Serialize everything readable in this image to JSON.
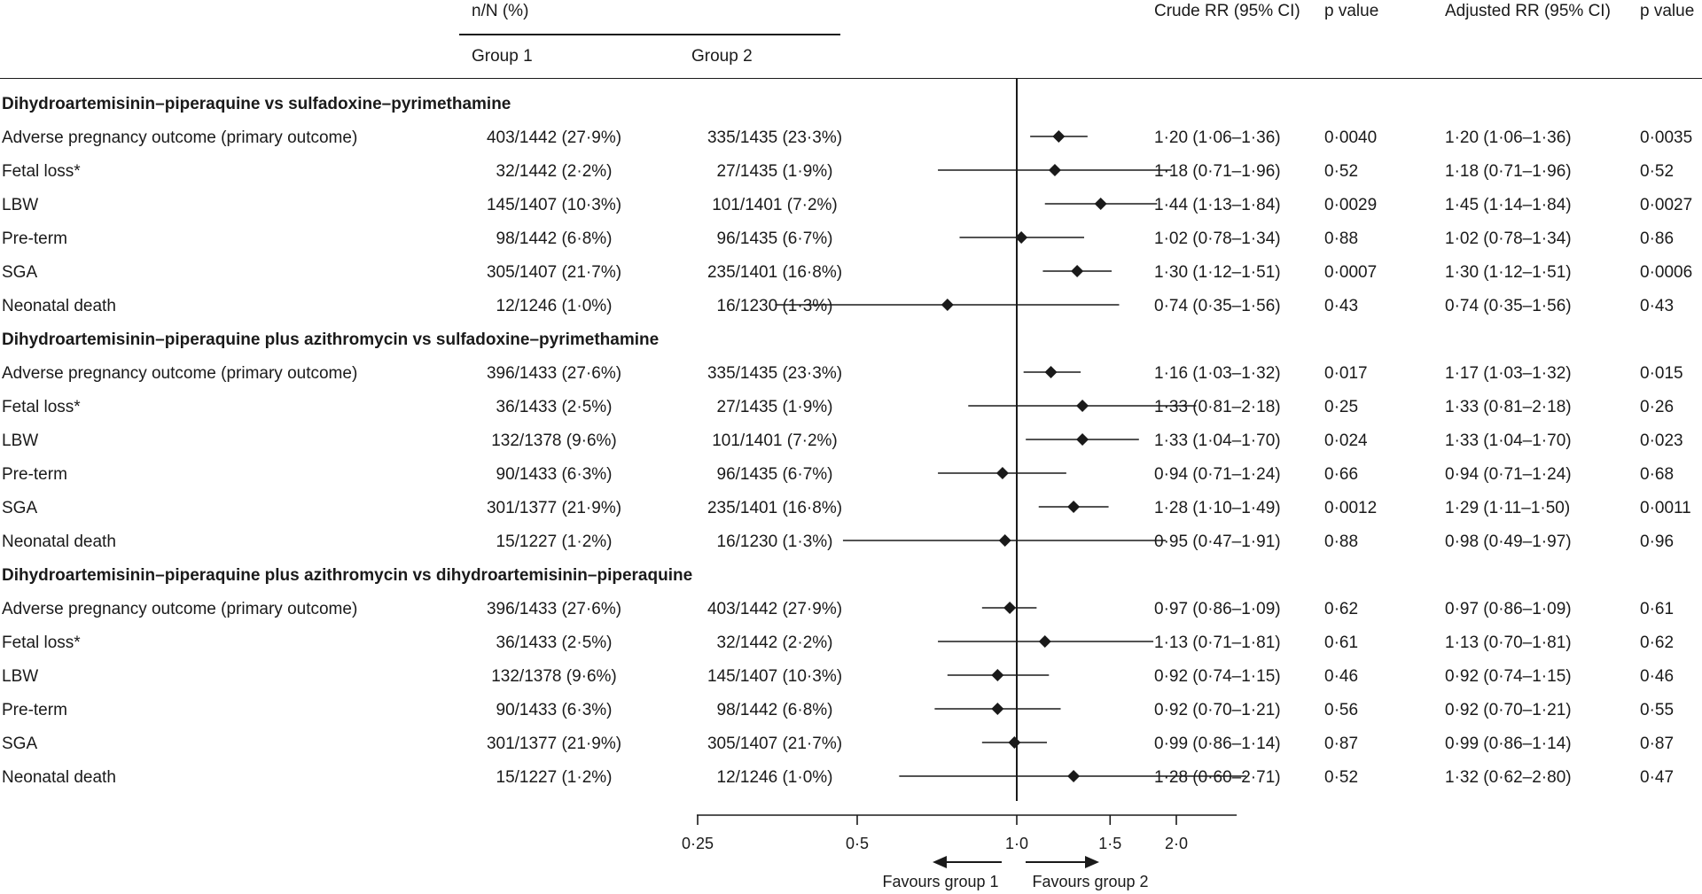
{
  "header": {
    "nN": "n/N (%)",
    "group1": "Group 1",
    "group2": "Group 2",
    "crude": "Crude RR (95% CI)",
    "pvalue1": "p value",
    "adjusted": "Adjusted RR (95% CI)",
    "pvalue2": "p value"
  },
  "chart_data": {
    "type": "forest",
    "scale": "log",
    "xlim": [
      0.25,
      2.6
    ],
    "reference": 1.0,
    "ticks": [
      {
        "v": 0.25,
        "label": "0·25"
      },
      {
        "v": 0.5,
        "label": "0·5"
      },
      {
        "v": 1.0,
        "label": "1·0"
      },
      {
        "v": 1.5,
        "label": "1·5"
      },
      {
        "v": 2.0,
        "label": "2·0"
      }
    ],
    "favours_left": "Favours group 1",
    "favours_right": "Favours group 2",
    "sections": [
      {
        "title": "Dihydroartemisinin–piperaquine vs sulfadoxine–pyrimethamine",
        "rows": [
          {
            "label": "Adverse pregnancy outcome (primary outcome)",
            "g1": "403/1442 (27·9%)",
            "g2": "335/1435 (23·3%)",
            "crude": "1·20 (1·06–1·36)",
            "p1": "0·0040",
            "adj": "1·20 (1·06–1·36)",
            "p2": "0·0035",
            "rr": 1.2,
            "lo": 1.06,
            "hi": 1.36
          },
          {
            "label": "Fetal loss*",
            "g1": "32/1442 (2·2%)",
            "g2": "27/1435 (1·9%)",
            "crude": "1·18 (0·71–1·96)",
            "p1": "0·52",
            "adj": "1·18 (0·71–1·96)",
            "p2": "0·52",
            "rr": 1.18,
            "lo": 0.71,
            "hi": 1.96
          },
          {
            "label": "LBW",
            "g1": "145/1407 (10·3%)",
            "g2": "101/1401 (7·2%)",
            "crude": "1·44 (1·13–1·84)",
            "p1": "0·0029",
            "adj": "1·45 (1·14–1·84)",
            "p2": "0·0027",
            "rr": 1.44,
            "lo": 1.13,
            "hi": 1.84
          },
          {
            "label": "Pre-term",
            "g1": "98/1442 (6·8%)",
            "g2": "96/1435 (6·7%)",
            "crude": "1·02 (0·78–1·34)",
            "p1": "0·88",
            "adj": "1·02 (0·78–1·34)",
            "p2": "0·86",
            "rr": 1.02,
            "lo": 0.78,
            "hi": 1.34
          },
          {
            "label": "SGA",
            "g1": "305/1407 (21·7%)",
            "g2": "235/1401 (16·8%)",
            "crude": "1·30 (1·12–1·51)",
            "p1": "0·0007",
            "adj": "1·30 (1·12–1·51)",
            "p2": "0·0006",
            "rr": 1.3,
            "lo": 1.12,
            "hi": 1.51
          },
          {
            "label": "Neonatal death",
            "g1": "12/1246 (1·0%)",
            "g2": "16/1230 (1·3%)",
            "crude": "0·74 (0·35–1·56)",
            "p1": "0·43",
            "adj": "0·74 (0·35–1·56)",
            "p2": "0·43",
            "rr": 0.74,
            "lo": 0.35,
            "hi": 1.56
          }
        ]
      },
      {
        "title": "Dihydroartemisinin–piperaquine plus azithromycin vs sulfadoxine–pyrimethamine",
        "rows": [
          {
            "label": "Adverse pregnancy outcome (primary outcome)",
            "g1": "396/1433 (27·6%)",
            "g2": "335/1435 (23·3%)",
            "crude": "1·16 (1·03–1·32)",
            "p1": "0·017",
            "adj": "1·17 (1·03–1·32)",
            "p2": "0·015",
            "rr": 1.16,
            "lo": 1.03,
            "hi": 1.32
          },
          {
            "label": "Fetal loss*",
            "g1": "36/1433 (2·5%)",
            "g2": "27/1435 (1·9%)",
            "crude": "1·33 (0·81–2·18)",
            "p1": "0·25",
            "adj": "1·33 (0·81–2·18)",
            "p2": "0·26",
            "rr": 1.33,
            "lo": 0.81,
            "hi": 2.18
          },
          {
            "label": "LBW",
            "g1": "132/1378 (9·6%)",
            "g2": "101/1401 (7·2%)",
            "crude": "1·33 (1·04–1·70)",
            "p1": "0·024",
            "adj": "1·33 (1·04–1·70)",
            "p2": "0·023",
            "rr": 1.33,
            "lo": 1.04,
            "hi": 1.7
          },
          {
            "label": "Pre-term",
            "g1": "90/1433 (6·3%)",
            "g2": "96/1435 (6·7%)",
            "crude": "0·94 (0·71–1·24)",
            "p1": "0·66",
            "adj": "0·94 (0·71–1·24)",
            "p2": "0·68",
            "rr": 0.94,
            "lo": 0.71,
            "hi": 1.24
          },
          {
            "label": "SGA",
            "g1": "301/1377 (21·9%)",
            "g2": "235/1401 (16·8%)",
            "crude": "1·28 (1·10–1·49)",
            "p1": "0·0012",
            "adj": "1·29 (1·11–1·50)",
            "p2": "0·0011",
            "rr": 1.28,
            "lo": 1.1,
            "hi": 1.49
          },
          {
            "label": "Neonatal death",
            "g1": "15/1227 (1·2%)",
            "g2": "16/1230 (1·3%)",
            "crude": "0·95 (0·47–1·91)",
            "p1": "0·88",
            "adj": "0·98 (0·49–1·97)",
            "p2": "0·96",
            "rr": 0.95,
            "lo": 0.47,
            "hi": 1.91
          }
        ]
      },
      {
        "title": "Dihydroartemisinin–piperaquine plus azithromycin vs dihydroartemisinin–piperaquine",
        "rows": [
          {
            "label": "Adverse pregnancy outcome (primary outcome)",
            "g1": "396/1433 (27·6%)",
            "g2": "403/1442 (27·9%)",
            "crude": "0·97 (0·86–1·09)",
            "p1": "0·62",
            "adj": "0·97 (0·86–1·09)",
            "p2": "0·61",
            "rr": 0.97,
            "lo": 0.86,
            "hi": 1.09
          },
          {
            "label": "Fetal loss*",
            "g1": "36/1433 (2·5%)",
            "g2": "32/1442 (2·2%)",
            "crude": "1·13 (0·71–1·81)",
            "p1": "0·61",
            "adj": "1·13 (0·70–1·81)",
            "p2": "0·62",
            "rr": 1.13,
            "lo": 0.71,
            "hi": 1.81
          },
          {
            "label": "LBW",
            "g1": "132/1378 (9·6%)",
            "g2": "145/1407 (10·3%)",
            "crude": "0·92 (0·74–1·15)",
            "p1": "0·46",
            "adj": "0·92 (0·74–1·15)",
            "p2": "0·46",
            "rr": 0.92,
            "lo": 0.74,
            "hi": 1.15
          },
          {
            "label": "Pre-term",
            "g1": "90/1433 (6·3%)",
            "g2": "98/1442 (6·8%)",
            "crude": "0·92 (0·70–1·21)",
            "p1": "0·56",
            "adj": "0·92 (0·70–1·21)",
            "p2": "0·55",
            "rr": 0.92,
            "lo": 0.7,
            "hi": 1.21
          },
          {
            "label": "SGA",
            "g1": "301/1377 (21·9%)",
            "g2": "305/1407 (21·7%)",
            "crude": "0·99 (0·86–1·14)",
            "p1": "0·87",
            "adj": "0·99 (0·86–1·14)",
            "p2": "0·87",
            "rr": 0.99,
            "lo": 0.86,
            "hi": 1.14
          },
          {
            "label": "Neonatal death",
            "g1": "15/1227 (1·2%)",
            "g2": "12/1246 (1·0%)",
            "crude": "1·28 (0·60–2·71)",
            "p1": "0·52",
            "adj": "1·32 (0·62–2·80)",
            "p2": "0·47",
            "rr": 1.28,
            "lo": 0.6,
            "hi": 2.71
          }
        ]
      }
    ]
  }
}
